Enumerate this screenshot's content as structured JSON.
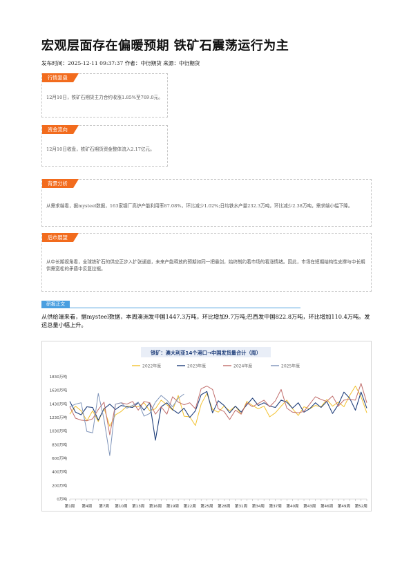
{
  "article": {
    "title": "宏观层面存在偏暖预期 铁矿石震荡运行为主",
    "meta": "发布时间：2025-12-11 09:37:37 作者：中衍期货 来源：中衍期货"
  },
  "sections": {
    "market": {
      "tag": "行情复盘",
      "text": "12月10日，铁矿石期货主力合约收涨1.85%至769.0元。"
    },
    "capital": {
      "tag": "资金流向",
      "text": "12月10日收盘，铁矿石期货资金整体流入2.17亿元。"
    },
    "background": {
      "tag": "背景分析",
      "text": "从需求端看，据mysteel数据，163家钢厂高炉产能利用率87.08%，环比减少1.02%;日均铁水产量232.3万吨，环比减少2.38万吨，需求端小幅下降。"
    },
    "outlook": {
      "tag": "后市展望",
      "text": "从中长期视角看，全球铁矿石的供应正步入扩张通道，未来产能释放的预期如同一把悬剑，始终制约着市场的看涨情绪。因此，市场在短期结构性支撑与中长期供需宽松的矛盾中反复拉锯。"
    }
  },
  "report": {
    "tag": "研报正文",
    "text": "从供给端来看，据mysteel数据，本周澳洲发中国1447.3万吨，环比增加9.7万吨;巴西发中国822.8万吨，环比增加110.4万吨。发运总量小幅上升。"
  },
  "chart_data": {
    "type": "line",
    "title": "铁矿：澳大利亚14个港口→中国发货量合计（周）",
    "y_tick_labels": [
      "0万吨",
      "200万吨",
      "400万吨",
      "600万吨",
      "830万吨",
      "1030万吨",
      "1230万吨",
      "1430万吨",
      "1630万吨",
      "1830万吨"
    ],
    "x_tick_labels": [
      "第1周",
      "第4周",
      "第7周",
      "第10周",
      "第13周",
      "第16周",
      "第19周",
      "第22周",
      "第25周",
      "第28周",
      "第31周",
      "第34周",
      "第37周",
      "第40周",
      "第43周",
      "第46周",
      "第49周",
      "第52周"
    ],
    "ylim": [
      0,
      1830
    ],
    "grid": false,
    "legend_position": "top",
    "series": [
      {
        "name": "2022年度",
        "color": "#f2c12e",
        "values": [
          1270,
          1390,
          1320,
          1170,
          1320,
          1160,
          1360,
          1090,
          1260,
          1310,
          1390,
          1390,
          1380,
          1440,
          1320,
          1350,
          1480,
          1410,
          1330,
          1550,
          1240,
          1230,
          1100,
          1420,
          1580,
          1340,
          1300,
          1390,
          1320,
          1390,
          1270,
          1460,
          1400,
          1350,
          1390,
          1230,
          1290,
          1390,
          1480,
          1350,
          1250,
          1380,
          1350,
          1400,
          1380,
          1490,
          1390,
          1450,
          1380,
          1550,
          1690,
          1530,
          1290
        ]
      },
      {
        "name": "2023年度",
        "color": "#1f3e7a",
        "values": [
          1460,
          1300,
          1260,
          1380,
          1370,
          1180,
          1350,
          1420,
          1340,
          1400,
          1380,
          1370,
          1440,
          1330,
          1440,
          880,
          1380,
          1440,
          1340,
          1280,
          1360,
          1220,
          1320,
          1560,
          1610,
          1290,
          1470,
          1400,
          1290,
          1390,
          1300,
          1410,
          1510,
          1400,
          1440,
          1390,
          1370,
          1480,
          1450,
          1360,
          1440,
          1300,
          1350,
          1440,
          1370,
          1460,
          1280,
          1410,
          1600,
          1510,
          1330,
          1600,
          1360
        ]
      },
      {
        "name": "2024年度",
        "color": "#c06c6a",
        "values": [
          1380,
          1210,
          1180,
          1170,
          1200,
          1340,
          1450,
          960,
          1420,
          1440,
          1420,
          1460,
          1330,
          1460,
          1440,
          1270,
          1380,
          1270,
          1530,
          1450,
          1410,
          1440,
          1350,
          1650,
          1690,
          1640,
          1350,
          1310,
          1190,
          1330,
          1270,
          1440,
          1380,
          1430,
          1480,
          1380,
          1470,
          1640,
          1360,
          1300,
          1290,
          1310,
          1420,
          1530,
          1490,
          1460,
          1540,
          1390,
          1480,
          1490,
          1480,
          1730,
          1440
        ]
      },
      {
        "name": "2025年度",
        "color": "#7c92b8",
        "values": [
          1380,
          1420,
          1440,
          1010,
          990,
          1580,
          1190,
          650,
          1420,
          1440,
          1360,
          1400,
          1450,
          1240,
          1280,
          1450,
          1550,
          1480,
          1380,
          1510,
          1570
        ]
      }
    ]
  }
}
